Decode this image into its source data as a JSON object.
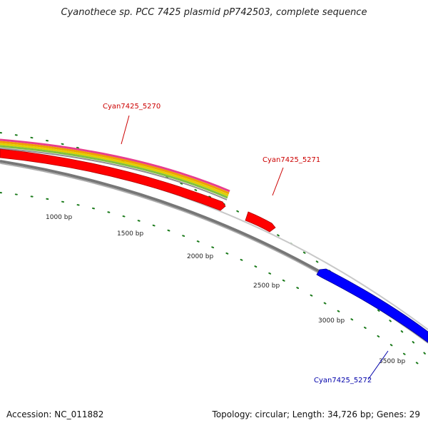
{
  "title": "Cyanothece sp. PCC 7425 plasmid pP742503, complete sequence",
  "footer": {
    "accession": "Accession: NC_011882",
    "summary": "Topology: circular; Length: 34,726 bp; Genes: 29"
  },
  "scale_labels": [
    "1000 bp",
    "1500 bp",
    "2000 bp",
    "2500 bp",
    "3000 bp",
    "3500 bp"
  ],
  "genes": [
    {
      "name": "Cyan7425_5270",
      "color": "#cc0000"
    },
    {
      "name": "Cyan7425_5271",
      "color": "#cc0000"
    },
    {
      "name": "Cyan7425_5272",
      "color": "#0000aa"
    }
  ],
  "colors": {
    "forward_gene": "#ff0000",
    "reverse_gene": "#0000ff",
    "backbone": "#888888",
    "tick": "#1a7a1a",
    "rainbow": [
      "#e83e8c",
      "#f0a000",
      "#e0d000",
      "#80c040",
      "#909090"
    ]
  }
}
